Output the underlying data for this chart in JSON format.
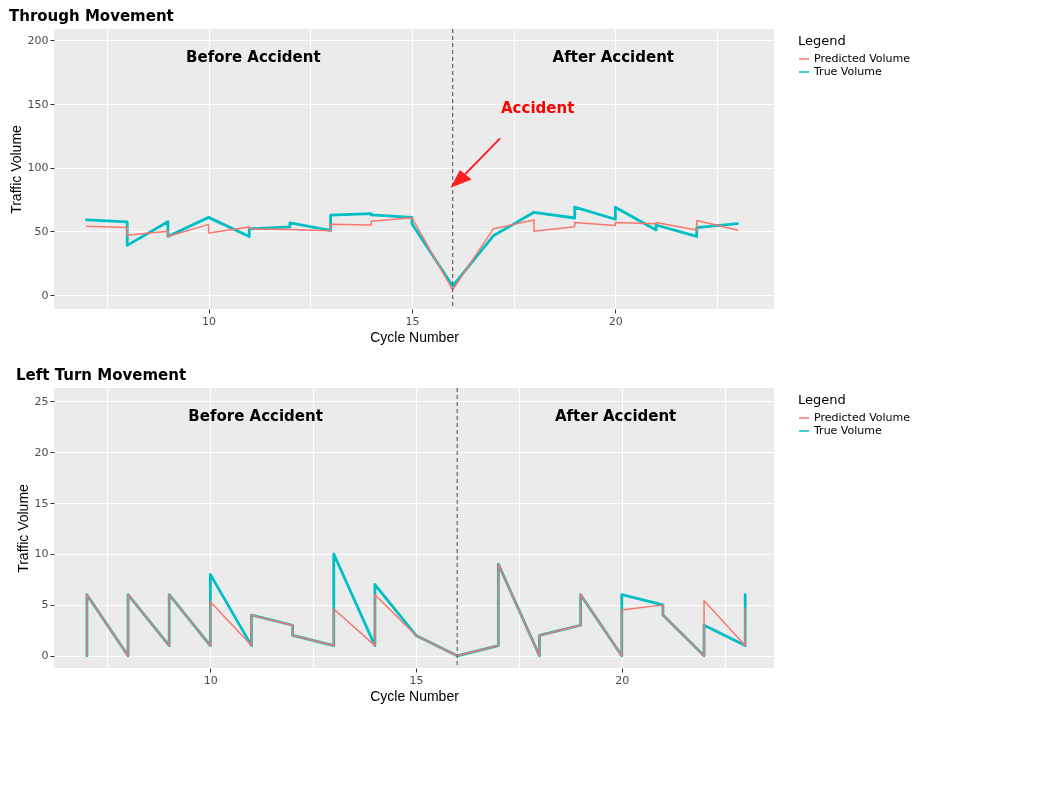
{
  "chart_data": [
    {
      "type": "line",
      "title": "Through Movement",
      "xlabel": "Cycle Number",
      "ylabel": "Traffic Volume",
      "legend_title": "Legend",
      "legend": "right",
      "grid": true,
      "xlim": [
        6.2,
        23.9
      ],
      "xticks": [
        {
          "value": 7.5,
          "label": null
        },
        10,
        {
          "value": 12.5,
          "label": null
        },
        15,
        {
          "value": 17.5,
          "label": null
        },
        20,
        {
          "value": 22.5,
          "label": null
        }
      ],
      "ylim": [
        -11,
        209
      ],
      "yticks": [
        0,
        50,
        100,
        150,
        200
      ],
      "series": [
        {
          "name": "Predicted Volume",
          "color": "#f8766d",
          "x": [
            7,
            8,
            8,
            9,
            9,
            10,
            10,
            11,
            11,
            12,
            13,
            13,
            14,
            14,
            15,
            16,
            17,
            18,
            18,
            19,
            19,
            20,
            20,
            21,
            21,
            22,
            22,
            23
          ],
          "values": [
            54,
            53,
            47,
            50,
            46,
            55.5,
            48.7,
            53.4,
            52,
            51.5,
            50.5,
            55.6,
            55,
            58,
            60.7,
            4,
            52,
            59,
            50,
            53.7,
            57,
            54.6,
            57,
            56,
            57,
            51,
            58.5,
            51
          ]
        },
        {
          "name": "True Volume",
          "color": "#00bfc4",
          "x": [
            7,
            8,
            8,
            9,
            9,
            10,
            11,
            11,
            12,
            12,
            13,
            13,
            14,
            14,
            15,
            15,
            16,
            17,
            18,
            19,
            19,
            20,
            20,
            21,
            21,
            22,
            22,
            23
          ],
          "values": [
            59,
            57.5,
            39,
            57.5,
            46,
            61,
            46,
            52,
            53.5,
            56.6,
            50.7,
            62.7,
            64,
            63,
            61,
            56,
            7,
            46.5,
            65,
            60.5,
            69,
            59.5,
            69,
            51,
            55,
            46,
            53,
            56
          ]
        }
      ],
      "ref_lines": [
        {
          "axis": "x",
          "value": 16,
          "color": "#666666",
          "line_style": "dashed"
        }
      ],
      "annotations": [
        "Before Accident",
        "After Accident",
        "Accident"
      ]
    },
    {
      "type": "line",
      "title": "Left Turn Movement",
      "xlabel": "Cycle Number",
      "ylabel": "Traffic Volume",
      "legend_title": "Legend",
      "legend": "right",
      "grid": true,
      "xlim": [
        6.2,
        23.7
      ],
      "xticks": [
        {
          "value": 7.5,
          "label": null
        },
        10,
        {
          "value": 12.5,
          "label": null
        },
        15,
        {
          "value": 17.5,
          "label": null
        },
        20,
        {
          "value": 22.5,
          "label": null
        }
      ],
      "ylim": [
        -1.2,
        26.3
      ],
      "yticks": [
        0,
        5,
        10,
        15,
        20,
        25
      ],
      "series": [
        {
          "name": "Predicted Volume",
          "color": "#f8766d",
          "x": [
            7,
            7,
            8,
            8,
            9,
            9,
            10,
            10,
            11,
            11,
            12,
            12,
            13,
            13,
            14,
            14,
            15,
            16,
            17,
            17,
            18,
            18,
            19,
            19,
            20,
            20,
            21,
            21,
            22,
            22,
            23,
            23
          ],
          "values": [
            0,
            6,
            0,
            6,
            1,
            6,
            1,
            5.3,
            1,
            4,
            3,
            2,
            1,
            4.6,
            1,
            6,
            2,
            0,
            1,
            9,
            0,
            2,
            3,
            6,
            0,
            4.5,
            5,
            4,
            0,
            5.4,
            1,
            4.6
          ]
        },
        {
          "name": "True Volume",
          "color": "#00bfc4",
          "x": [
            7,
            7,
            8,
            8,
            9,
            9,
            10,
            10,
            11,
            11,
            12,
            12,
            13,
            13,
            14,
            14,
            15,
            16,
            17,
            17,
            18,
            18,
            19,
            19,
            20,
            20,
            21,
            21,
            22,
            22,
            23,
            23
          ],
          "values": [
            0,
            6,
            0,
            6,
            1,
            6,
            1,
            8,
            1,
            4,
            3,
            2,
            1,
            10,
            1,
            7,
            2,
            0,
            1,
            9,
            0,
            2,
            3,
            6,
            0,
            6,
            5,
            4,
            0,
            3,
            1,
            6
          ]
        }
      ],
      "ref_lines": [
        {
          "axis": "x",
          "value": 16,
          "color": "#666666",
          "line_style": "dashed"
        }
      ],
      "annotations": [
        "Before Accident",
        "After Accident"
      ]
    }
  ]
}
